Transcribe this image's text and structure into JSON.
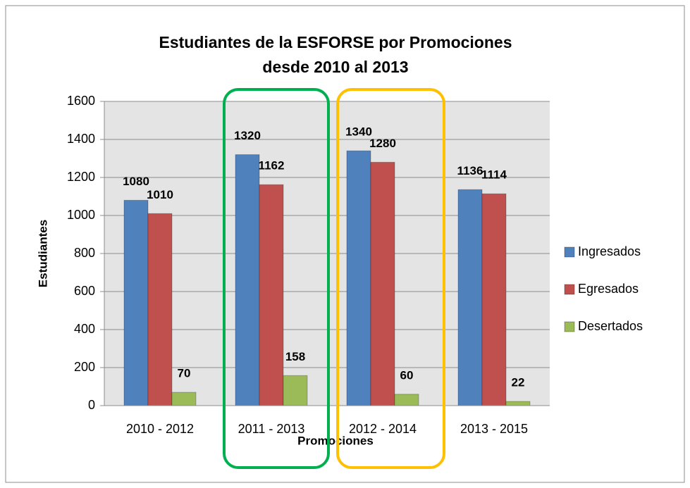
{
  "chart_data": {
    "type": "bar",
    "title": [
      "Estudiantes de la ESFORSE por Promociones",
      "desde 2010 al 2013"
    ],
    "x_label": "Promociones",
    "y_label": "Estudiantes",
    "categories": [
      "2010 - 2012",
      "2011 - 2013",
      "2012 - 2014",
      "2013 - 2015"
    ],
    "series": [
      {
        "name": "Ingresados",
        "color": "#4f81bd",
        "values": [
          1080,
          1320,
          1340,
          1136
        ]
      },
      {
        "name": "Egresados",
        "color": "#c0504d",
        "values": [
          1010,
          1162,
          1280,
          1114
        ]
      },
      {
        "name": "Desertados",
        "color": "#9bbb59",
        "values": [
          70,
          158,
          60,
          22
        ]
      }
    ],
    "ylim": [
      0,
      1600
    ],
    "yticks": [
      0,
      200,
      400,
      600,
      800,
      1000,
      1200,
      1400,
      1600
    ],
    "grid": true,
    "legend": "right"
  }
}
